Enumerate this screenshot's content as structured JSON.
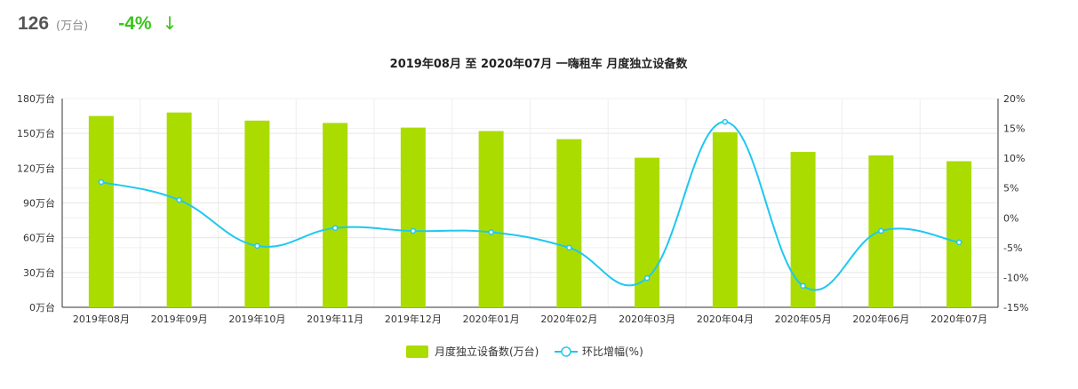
{
  "kpi": {
    "value": "126",
    "unit": "(万台)",
    "change": "-4%",
    "arrow": "↓"
  },
  "chart_data": {
    "type": "bar+line",
    "title": "2019年08月 至 2020年07月 一嗨租车 月度独立设备数",
    "categories": [
      "2019年08月",
      "2019年09月",
      "2019年10月",
      "2019年11月",
      "2019年12月",
      "2020年01月",
      "2020年02月",
      "2020年03月",
      "2020年04月",
      "2020年05月",
      "2020年06月",
      "2020年07月"
    ],
    "series": [
      {
        "name": "月度独立设备数(万台)",
        "type": "bar",
        "axis": "left",
        "color": "#aadc00",
        "values": [
          165,
          168,
          161,
          159,
          155,
          152,
          145,
          129,
          151,
          134,
          131,
          126
        ]
      },
      {
        "name": "环比增幅(%)",
        "type": "line",
        "axis": "right",
        "color": "#1ec8f0",
        "values": [
          6.0,
          3.0,
          -4.7,
          -1.7,
          -2.2,
          -2.4,
          -5.0,
          -10.1,
          16.1,
          -11.4,
          -2.2,
          -4.1
        ]
      }
    ],
    "left_axis": {
      "ylim": [
        0,
        180
      ],
      "ticks": [
        "0万台",
        "30万台",
        "60万台",
        "90万台",
        "120万台",
        "150万台",
        "180万台"
      ]
    },
    "right_axis": {
      "ylim": [
        -15,
        20
      ],
      "ticks": [
        "-15%",
        "-10%",
        "-5%",
        "0%",
        "5%",
        "10%",
        "15%",
        "20%"
      ]
    },
    "grid": true,
    "legend": "bottom"
  }
}
